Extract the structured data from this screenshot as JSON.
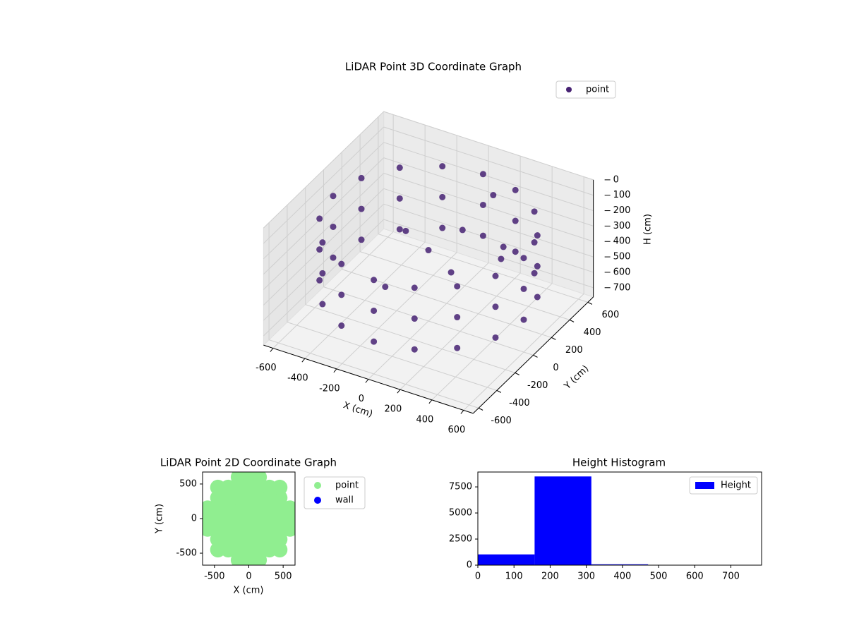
{
  "chart_data": [
    {
      "type": "scatter3d",
      "title": "LiDAR Point 3D Coordinate Graph",
      "xlabel": "X (cm)",
      "ylabel": "Y (cm)",
      "zlabel": "H (cm)",
      "xlim": [
        -660,
        660
      ],
      "ylim": [
        -660,
        660
      ],
      "zlim": [
        0,
        760
      ],
      "z_inverted": true,
      "grid": true,
      "xticks": [
        -600,
        -400,
        -200,
        0,
        200,
        400,
        600
      ],
      "yticks": [
        -600,
        -400,
        -200,
        0,
        200,
        400,
        600
      ],
      "zticks": [
        0,
        100,
        200,
        300,
        400,
        500,
        600,
        700
      ],
      "legend": "upper right",
      "series": [
        {
          "name": "point",
          "color": "#472273",
          "x": [
            600,
            554,
            424,
            230,
            0,
            -230,
            -424,
            -554,
            -600,
            -554,
            -424,
            -230,
            0,
            230,
            424,
            554,
            600,
            554,
            424,
            230,
            0,
            -230,
            -424,
            -554,
            -600,
            -554,
            -424,
            -230,
            0,
            230,
            424,
            554,
            600,
            554,
            424,
            230,
            0,
            -230,
            -424,
            -554,
            -600,
            -554,
            -424,
            -230,
            0,
            230,
            424,
            554,
            0,
            100,
            300,
            -200,
            200,
            400,
            -100,
            150
          ],
          "y": [
            0,
            230,
            424,
            554,
            600,
            554,
            424,
            230,
            0,
            -230,
            -424,
            -554,
            -600,
            -554,
            -424,
            -230,
            0,
            230,
            424,
            554,
            600,
            554,
            424,
            230,
            0,
            -230,
            -424,
            -554,
            -600,
            -554,
            -424,
            -230,
            0,
            230,
            424,
            554,
            600,
            554,
            424,
            230,
            0,
            -230,
            -424,
            -554,
            -600,
            -554,
            -424,
            -230,
            0,
            200,
            300,
            100,
            -100,
            100,
            -300,
            450
          ],
          "z": [
            150,
            150,
            150,
            150,
            150,
            150,
            150,
            150,
            150,
            150,
            150,
            150,
            150,
            150,
            150,
            150,
            350,
            350,
            350,
            350,
            350,
            350,
            350,
            350,
            350,
            350,
            350,
            350,
            350,
            350,
            350,
            350,
            550,
            550,
            550,
            550,
            550,
            550,
            550,
            550,
            550,
            550,
            550,
            550,
            550,
            550,
            550,
            550,
            300,
            250,
            350,
            300,
            320,
            280,
            400,
            150
          ]
        }
      ]
    },
    {
      "type": "scatter",
      "title": "LiDAR Point 2D Coordinate Graph",
      "xlabel": "X (cm)",
      "ylabel": "Y (cm)",
      "xlim": [
        -673,
        673
      ],
      "ylim": [
        -673,
        673
      ],
      "xticks": [
        -500,
        0,
        500
      ],
      "yticks": [
        -500,
        0,
        500
      ],
      "legend": "outside right",
      "series": [
        {
          "name": "point",
          "color": "#90ee90",
          "x": [
            -600,
            -600,
            -600,
            -450,
            -450,
            -450,
            -450,
            -450,
            -450,
            -450,
            -300,
            -300,
            -300,
            -300,
            -300,
            -300,
            -300,
            -150,
            -150,
            -150,
            -150,
            -150,
            -150,
            -150,
            -150,
            -150,
            0,
            0,
            0,
            0,
            0,
            0,
            0,
            0,
            0,
            150,
            150,
            150,
            150,
            150,
            150,
            150,
            150,
            150,
            300,
            300,
            300,
            300,
            300,
            300,
            300,
            450,
            450,
            450,
            450,
            450,
            450,
            450,
            600,
            600,
            600
          ],
          "y": [
            -150,
            0,
            150,
            -450,
            -300,
            -150,
            0,
            150,
            300,
            450,
            -450,
            -300,
            -150,
            0,
            150,
            300,
            450,
            -600,
            -450,
            -300,
            -150,
            0,
            150,
            300,
            450,
            600,
            -600,
            -450,
            -300,
            -150,
            0,
            150,
            300,
            450,
            600,
            -600,
            -450,
            -300,
            -150,
            0,
            150,
            300,
            450,
            600,
            -450,
            -300,
            -150,
            0,
            150,
            300,
            450,
            -450,
            -300,
            -150,
            0,
            150,
            300,
            450,
            -150,
            0,
            150
          ]
        },
        {
          "name": "wall",
          "color": "#0000ff",
          "x": [],
          "y": []
        }
      ]
    },
    {
      "type": "histogram",
      "title": "Height Histogram",
      "legend": "upper right",
      "xlim": [
        0,
        785
      ],
      "ylim": [
        0,
        8925
      ],
      "xticks": [
        0,
        100,
        200,
        300,
        400,
        500,
        600,
        700
      ],
      "yticks": [
        0,
        2500,
        5000,
        7500
      ],
      "bins": [
        0,
        157,
        314,
        471,
        628,
        785
      ],
      "series": [
        {
          "name": "Height",
          "color": "#0000ff",
          "values": [
            1030,
            8500,
            80,
            12,
            4
          ]
        }
      ]
    }
  ]
}
